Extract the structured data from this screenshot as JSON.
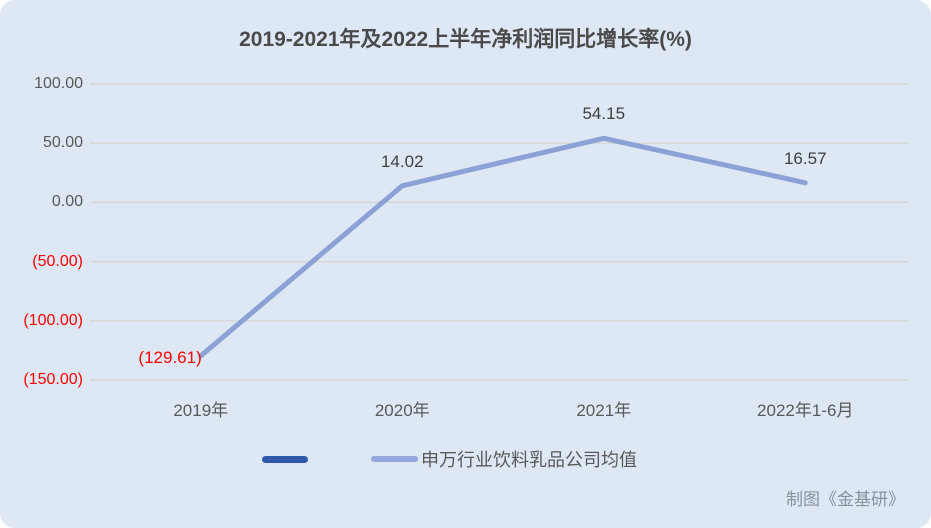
{
  "title": "2019-2021年及2022上半年净利润同比增长率(%)",
  "footer": {
    "credit": "制图《金基研》"
  },
  "legend": {
    "items": [
      {
        "label": "",
        "color": "#2e59ab"
      },
      {
        "label": "申万行业饮料乳品公司均值",
        "color": "#93a7da"
      }
    ]
  },
  "colors": {
    "line": "#8ca1d6",
    "negative_text": "#ff0000",
    "positive_text": "#3f3f3f",
    "axis_text": "#595959",
    "gridline": "#d6d2ca"
  },
  "chart_data": {
    "type": "line",
    "title": "2019-2021年及2022上半年净利润同比增长率(%)",
    "categories": [
      "2019年",
      "2020年",
      "2021年",
      "2022年1-6月"
    ],
    "series": [
      {
        "name": "申万行业饮料乳品公司均值",
        "values": [
          -129.61,
          14.02,
          54.15,
          16.57
        ],
        "color": "#8ca1d6"
      }
    ],
    "data_labels": [
      "(129.61)",
      "14.02",
      "54.15",
      "16.57"
    ],
    "y_ticks": [
      100,
      50,
      0,
      -50,
      -100,
      -150
    ],
    "y_tick_labels": [
      "100.00",
      "50.00",
      "0.00",
      "(50.00)",
      "(100.00)",
      "(150.00)"
    ],
    "ylim": [
      -150,
      100
    ],
    "grid": "horizontal",
    "legend_position": "bottom",
    "xlabel": "",
    "ylabel": ""
  }
}
